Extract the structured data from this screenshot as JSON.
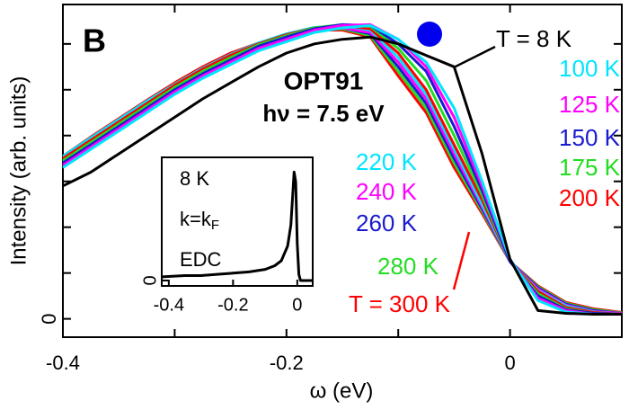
{
  "chart_data": [
    {
      "type": "line",
      "panel_label": "B",
      "title": "OPT91",
      "subtitle": "hν = 7.5 eV",
      "x_label": "ω (eV)",
      "y_label": "Intensity (arb. units)",
      "xlim": [
        -0.4,
        0.1
      ],
      "ylim": [
        -0.4,
        6.86
      ],
      "xticks": [
        -0.4,
        -0.2,
        0
      ],
      "xminorticks": [
        -0.3,
        -0.1,
        0.1
      ],
      "yticks": [
        0
      ],
      "yminorticks": [
        1,
        2,
        3,
        4,
        5,
        6
      ],
      "marker_color": "#0000ee",
      "x": [
        -0.4,
        -0.375,
        -0.35,
        -0.325,
        -0.3,
        -0.275,
        -0.25,
        -0.225,
        -0.2,
        -0.175,
        -0.15,
        -0.125,
        -0.1,
        -0.075,
        -0.05,
        -0.025,
        0,
        0.025,
        0.05,
        0.075,
        0.1
      ],
      "series": [
        {
          "name": "T = 300 K",
          "color": "#ff0000",
          "values": [
            3.55,
            3.97,
            4.37,
            4.77,
            5.15,
            5.5,
            5.8,
            6.02,
            6.2,
            6.3,
            6.3,
            6.15,
            5.3,
            4.5,
            3.3,
            2.3,
            1.25,
            0.72,
            0.36,
            0.22,
            0.14
          ]
        },
        {
          "name": "280 K",
          "color": "#22dd22",
          "values": [
            3.5,
            3.92,
            4.32,
            4.72,
            5.1,
            5.45,
            5.75,
            6.0,
            6.2,
            6.32,
            6.33,
            6.18,
            5.4,
            4.6,
            3.4,
            2.35,
            1.25,
            0.7,
            0.34,
            0.2,
            0.13
          ]
        },
        {
          "name": "260 K",
          "color": "#1a1ad0",
          "values": [
            3.45,
            3.87,
            4.27,
            4.67,
            5.07,
            5.42,
            5.72,
            5.98,
            6.18,
            6.32,
            6.35,
            6.22,
            5.5,
            4.7,
            3.5,
            2.4,
            1.25,
            0.68,
            0.32,
            0.18,
            0.12
          ]
        },
        {
          "name": "240 K",
          "color": "#ff00ff",
          "values": [
            3.4,
            3.82,
            4.22,
            4.62,
            5.02,
            5.37,
            5.67,
            5.95,
            6.15,
            6.3,
            6.35,
            6.25,
            5.6,
            4.8,
            3.6,
            2.45,
            1.25,
            0.65,
            0.3,
            0.16,
            0.12
          ]
        },
        {
          "name": "220 K",
          "color": "#00e5ff",
          "values": [
            3.55,
            3.95,
            4.35,
            4.75,
            5.12,
            5.47,
            5.77,
            6.02,
            6.22,
            6.36,
            6.4,
            6.3,
            5.7,
            4.9,
            3.7,
            2.5,
            1.25,
            0.62,
            0.28,
            0.15,
            0.1
          ]
        },
        {
          "name": "200 K",
          "color": "#ff0000",
          "values": [
            3.5,
            3.9,
            4.3,
            4.7,
            5.1,
            5.45,
            5.75,
            6.0,
            6.2,
            6.35,
            6.4,
            6.33,
            5.8,
            5.0,
            3.8,
            2.6,
            1.25,
            0.6,
            0.25,
            0.14,
            0.1
          ]
        },
        {
          "name": "175 K",
          "color": "#22dd22",
          "values": [
            3.45,
            3.85,
            4.25,
            4.65,
            5.05,
            5.4,
            5.7,
            5.98,
            6.18,
            6.35,
            6.42,
            6.38,
            5.9,
            5.2,
            4.0,
            2.7,
            1.25,
            0.55,
            0.22,
            0.12,
            0.1
          ]
        },
        {
          "name": "150 K",
          "color": "#1a1ad0",
          "values": [
            3.4,
            3.8,
            4.2,
            4.6,
            5.0,
            5.35,
            5.65,
            5.95,
            6.15,
            6.33,
            6.42,
            6.4,
            6.0,
            5.4,
            4.2,
            2.8,
            1.25,
            0.5,
            0.2,
            0.12,
            0.1
          ]
        },
        {
          "name": "125 K",
          "color": "#ff00ff",
          "values": [
            3.35,
            3.75,
            4.15,
            4.55,
            4.95,
            5.3,
            5.6,
            5.9,
            6.1,
            6.3,
            6.4,
            6.42,
            6.1,
            5.5,
            4.4,
            2.9,
            1.3,
            0.45,
            0.18,
            0.1,
            0.1
          ]
        },
        {
          "name": "100 K",
          "color": "#00e5ff",
          "values": [
            3.3,
            3.7,
            4.1,
            4.5,
            4.9,
            5.25,
            5.55,
            5.85,
            6.05,
            6.25,
            6.35,
            6.4,
            6.1,
            5.6,
            4.6,
            3.0,
            1.3,
            0.4,
            0.15,
            0.1,
            0.1
          ]
        },
        {
          "name": "T = 8 K",
          "color": "#000000",
          "values": [
            2.9,
            3.2,
            3.6,
            4.0,
            4.4,
            4.8,
            5.15,
            5.5,
            5.8,
            6.0,
            6.1,
            6.15,
            6.0,
            5.75,
            5.5,
            3.6,
            1.3,
            0.18,
            0.12,
            0.1,
            0.1
          ]
        }
      ]
    },
    {
      "type": "line",
      "annotations": [
        "8 K",
        "EDC"
      ],
      "k_label": {
        "main": "k=k",
        "sub": "F"
      },
      "xlim": [
        -0.422,
        0.048
      ],
      "ylim": [
        -0.044,
        1
      ],
      "xticks": [
        -0.4,
        -0.2,
        0
      ],
      "yticks": [
        0
      ],
      "x": [
        -0.42,
        -0.35,
        -0.3,
        -0.25,
        -0.2,
        -0.15,
        -0.1,
        -0.07,
        -0.05,
        -0.03,
        -0.02,
        -0.01,
        -0.005,
        0,
        0.005,
        0.01,
        0.03,
        0.048
      ],
      "series": [
        {
          "color": "#000000",
          "values": [
            0.03,
            0.04,
            0.04,
            0.05,
            0.06,
            0.07,
            0.09,
            0.12,
            0.16,
            0.28,
            0.45,
            0.88,
            0.8,
            0.3,
            0.05,
            0,
            0,
            0
          ]
        }
      ]
    }
  ]
}
